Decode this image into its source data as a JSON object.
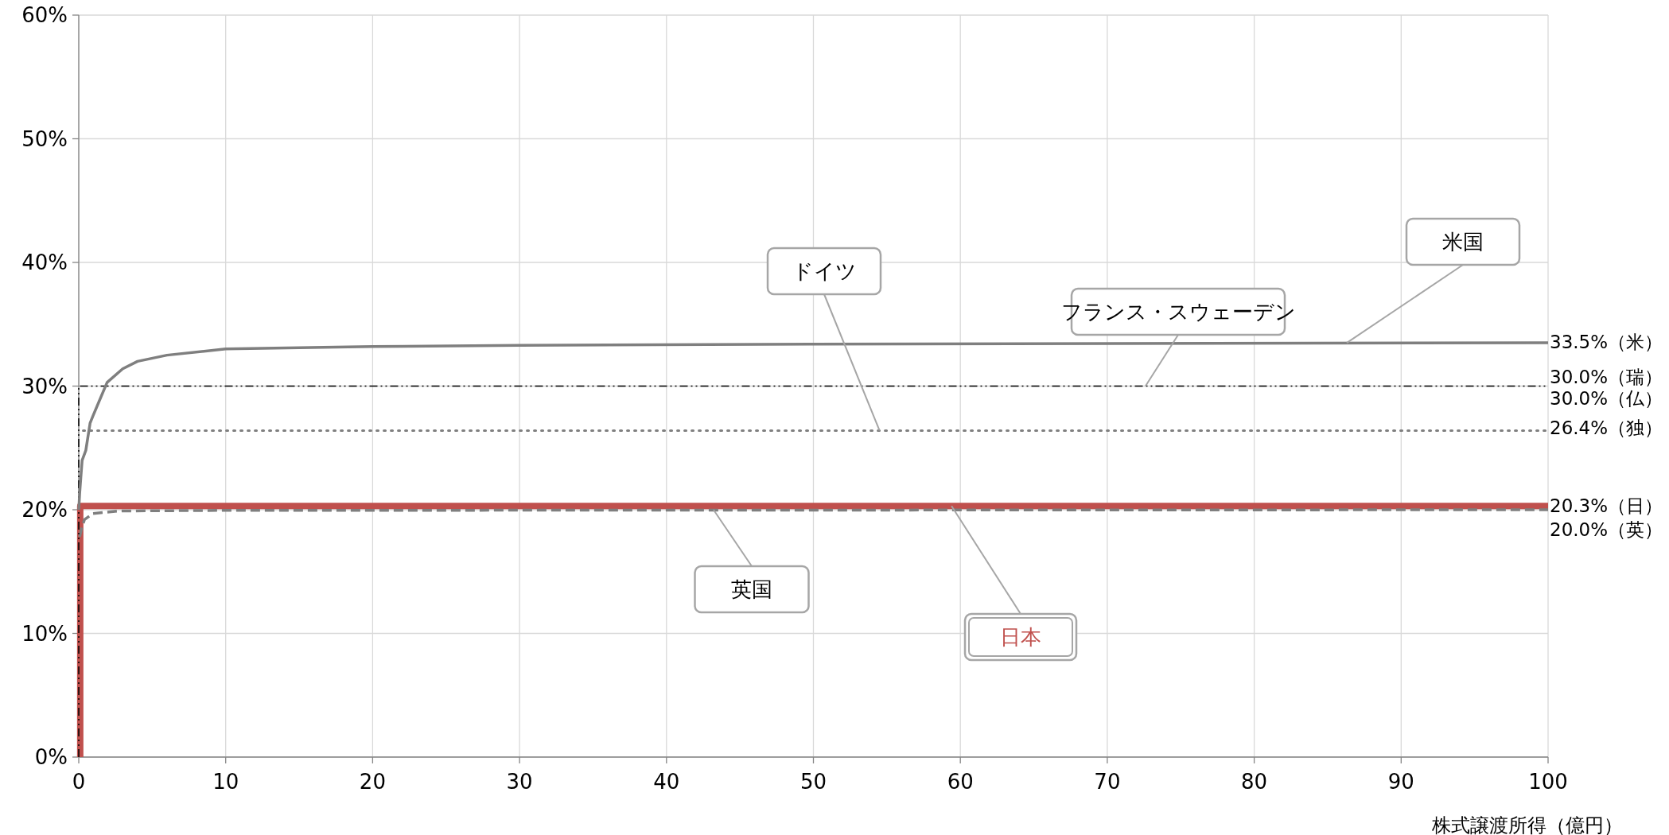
{
  "chart_data": {
    "type": "line",
    "xlabel": "株式譲渡所得（億円）",
    "xlim": [
      0,
      100
    ],
    "xticks": [
      0,
      10,
      20,
      30,
      40,
      50,
      60,
      70,
      80,
      90,
      100
    ],
    "ylim": [
      0,
      60
    ],
    "yticks": [
      {
        "value": 0,
        "label": "0%"
      },
      {
        "value": 10,
        "label": "10%"
      },
      {
        "value": 20,
        "label": "20%"
      },
      {
        "value": 30,
        "label": "30%"
      },
      {
        "value": 40,
        "label": "40%"
      },
      {
        "value": 50,
        "label": "50%"
      },
      {
        "value": 60,
        "label": "60%"
      }
    ],
    "grid": true,
    "legend": false,
    "marker": "none",
    "series": [
      {
        "name": "ドイツ",
        "color": "#808080",
        "line_style": "dotted",
        "x": [
          0.3,
          100
        ],
        "values": [
          26.4,
          26.4
        ]
      },
      {
        "name": "米国",
        "color": "#7f7f7f",
        "line_style": "solid",
        "x": [
          0,
          0.06,
          0.14,
          0.23,
          0.48,
          0.77,
          0.97,
          1.93,
          2.99,
          4.0,
          6.0,
          10,
          20,
          30,
          50,
          100
        ],
        "values": [
          20.0,
          21.3,
          22.6,
          24.0,
          24.8,
          27.0,
          27.6,
          30.3,
          31.4,
          32.0,
          32.5,
          33.0,
          33.2,
          33.3,
          33.4,
          33.5
        ]
      },
      {
        "name": "フランス・スウェーデン",
        "color": "#000000",
        "line_style": "dashdot",
        "x": [
          0,
          0,
          100
        ],
        "values": [
          0,
          30.0,
          30.0
        ]
      },
      {
        "name": "英国",
        "color": "#7f7f7f",
        "line_style": "dashed",
        "x": [
          0.06,
          0.19,
          0.39,
          0.97,
          2.7,
          10,
          100
        ],
        "values": [
          17.8,
          18.5,
          19.2,
          19.7,
          19.9,
          19.95,
          20.0
        ]
      },
      {
        "name": "日本",
        "color": "#c0504d",
        "line_style": "solid",
        "x": [
          0.1,
          0.1,
          100
        ],
        "values": [
          0,
          20.3,
          20.3
        ]
      }
    ],
    "annotations": [
      "33.5%（米）",
      "30.0%（瑞）",
      "30.0%（仏）",
      "26.4%（独）",
      "20.3%（日）",
      "20.0%（英）"
    ]
  }
}
